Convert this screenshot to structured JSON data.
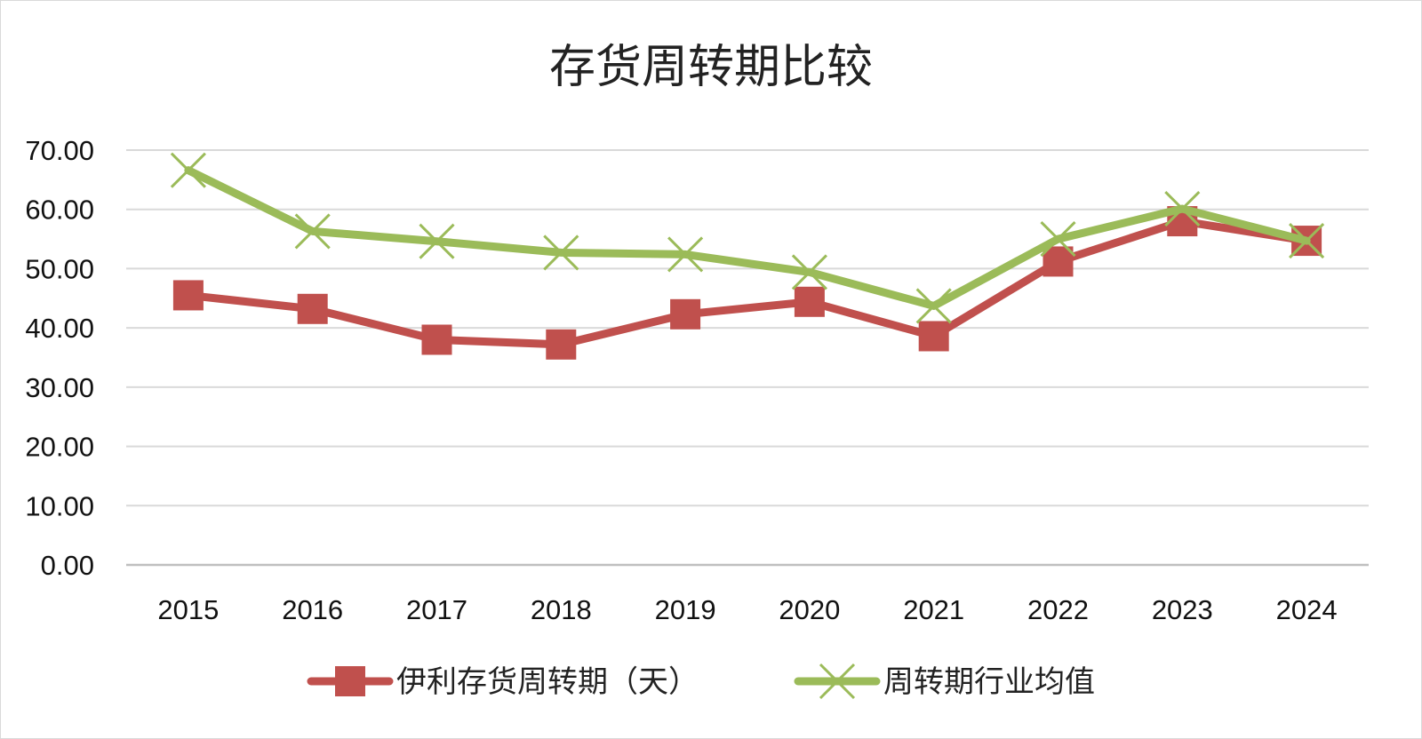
{
  "chart_data": {
    "type": "line",
    "title": "存货周转期比较",
    "categories": [
      "2015",
      "2016",
      "2017",
      "2018",
      "2019",
      "2020",
      "2021",
      "2022",
      "2023",
      "2024"
    ],
    "y_ticks": [
      "0.00",
      "10.00",
      "20.00",
      "30.00",
      "40.00",
      "50.00",
      "60.00",
      "70.00"
    ],
    "ylim": [
      0,
      70
    ],
    "grid": true,
    "legend_position": "bottom",
    "series": [
      {
        "name": "伊利存货周转期（天）",
        "marker": "square",
        "color": "#c0504d",
        "values": [
          45.5,
          43.2,
          38.0,
          37.2,
          42.3,
          44.4,
          38.6,
          51.2,
          58.0,
          54.7
        ]
      },
      {
        "name": "周转期行业均值",
        "marker": "x",
        "color": "#9bbb59",
        "values": [
          66.6,
          56.3,
          54.6,
          52.7,
          52.4,
          49.4,
          43.7,
          55.0,
          60.1,
          54.7
        ]
      }
    ]
  }
}
